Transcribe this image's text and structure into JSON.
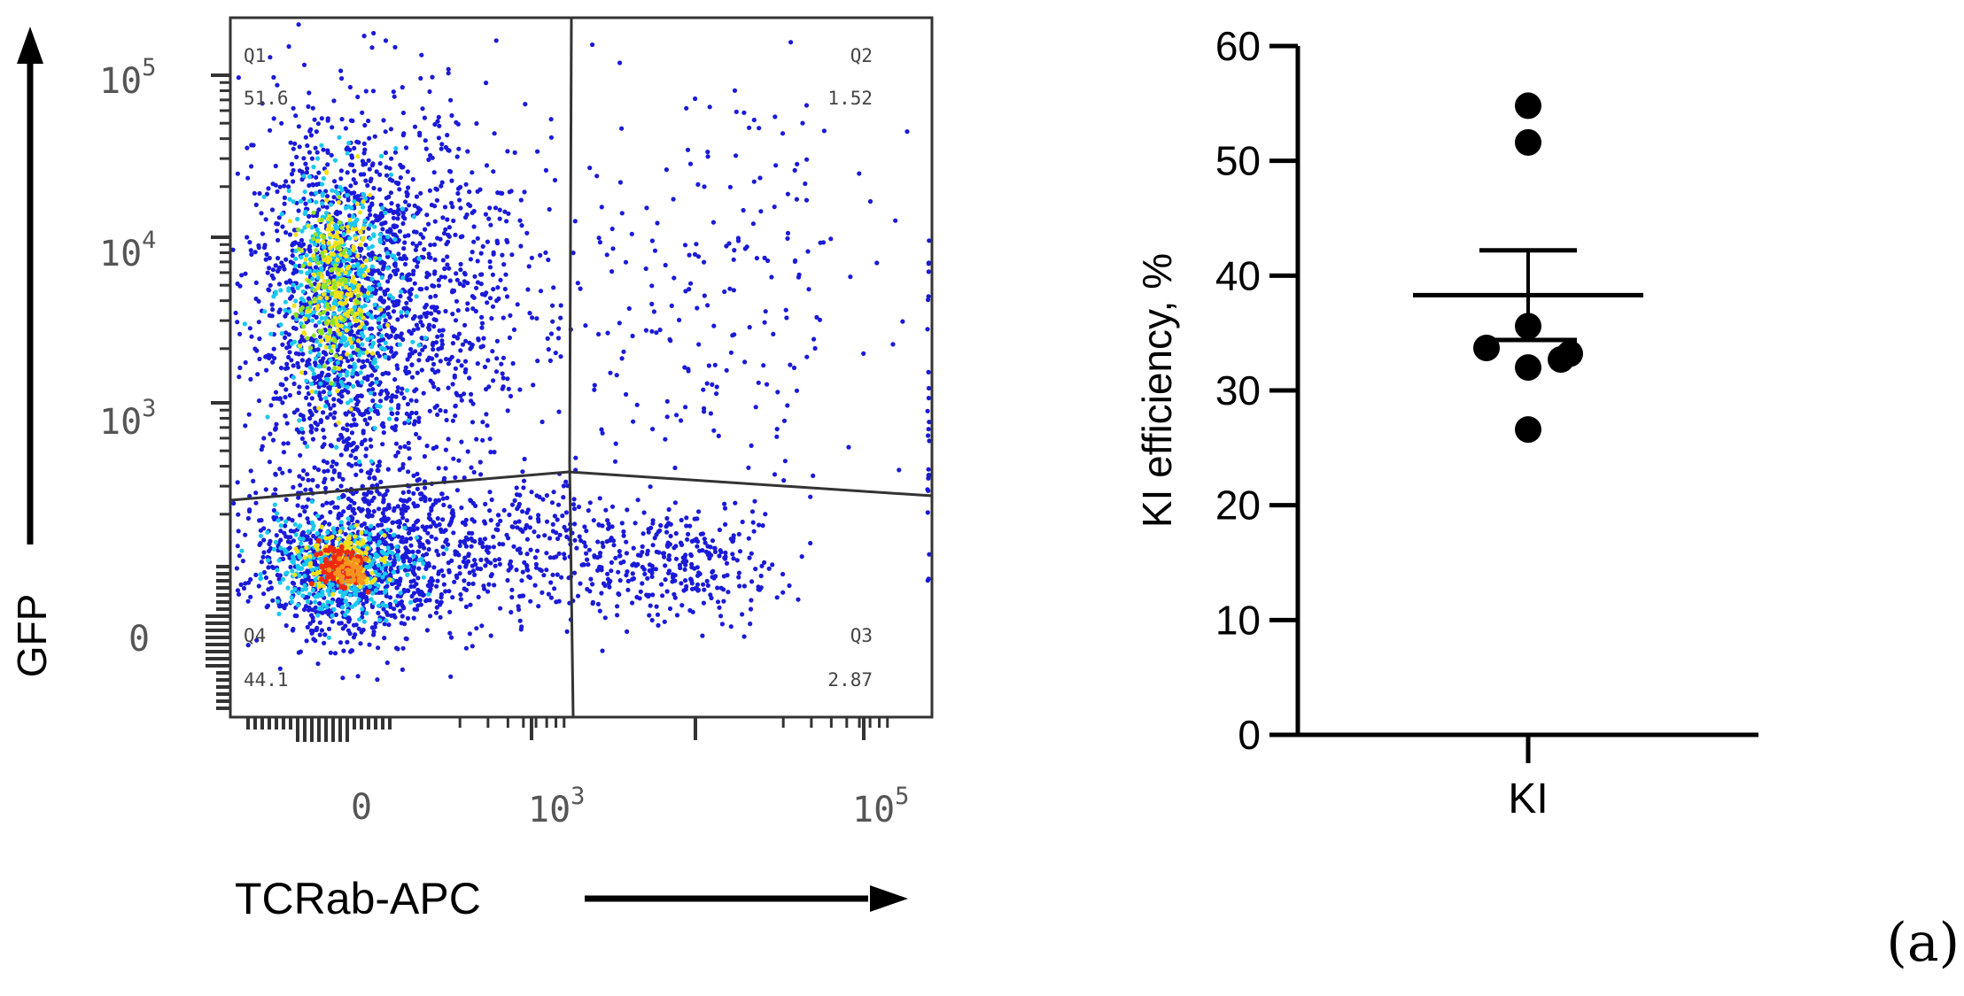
{
  "panel_label": "(a)",
  "chart_data": [
    {
      "type": "scatter",
      "subtype": "flow-cytometry-density-plot",
      "xlabel": "TCRab-APC",
      "ylabel": "GFP",
      "x_scale": "biexponential",
      "y_scale": "biexponential",
      "x_ticks": [
        {
          "value": 0,
          "base": "0",
          "exp": ""
        },
        {
          "value": 1000,
          "base": "10",
          "exp": "3"
        },
        {
          "value": 100000,
          "base": "10",
          "exp": "5"
        }
      ],
      "y_ticks": [
        {
          "value": 0,
          "base": "0",
          "exp": ""
        },
        {
          "value": 1000,
          "base": "10",
          "exp": "3"
        },
        {
          "value": 10000,
          "base": "10",
          "exp": "4"
        },
        {
          "value": 100000,
          "base": "10",
          "exp": "5"
        }
      ],
      "quadrants": [
        {
          "name": "Q1",
          "value": "51.6",
          "position": "top-left"
        },
        {
          "name": "Q2",
          "value": "1.52",
          "position": "top-right"
        },
        {
          "name": "Q3",
          "value": "2.87",
          "position": "bottom-right"
        },
        {
          "name": "Q4",
          "value": "44.1",
          "position": "bottom-left"
        }
      ],
      "colors": {
        "low_density": "#1a1ad8",
        "mid_density": "#19c9f0",
        "high_density": "#f2e21a",
        "peak_density": "#ee2a10"
      },
      "grid": false
    },
    {
      "type": "scatter",
      "subtype": "dot-plot-with-mean-and-sem",
      "categories": [
        "KI"
      ],
      "ylabel": "KI efficiency, %",
      "ylim": [
        0,
        60
      ],
      "yticks": [
        0,
        10,
        20,
        30,
        40,
        50,
        60
      ],
      "values": [
        54.8,
        51.6,
        35.6,
        33.7,
        33.2,
        32.7,
        32.0,
        26.6
      ],
      "mean": 38.3,
      "sem": 3.9,
      "grid": false
    }
  ]
}
